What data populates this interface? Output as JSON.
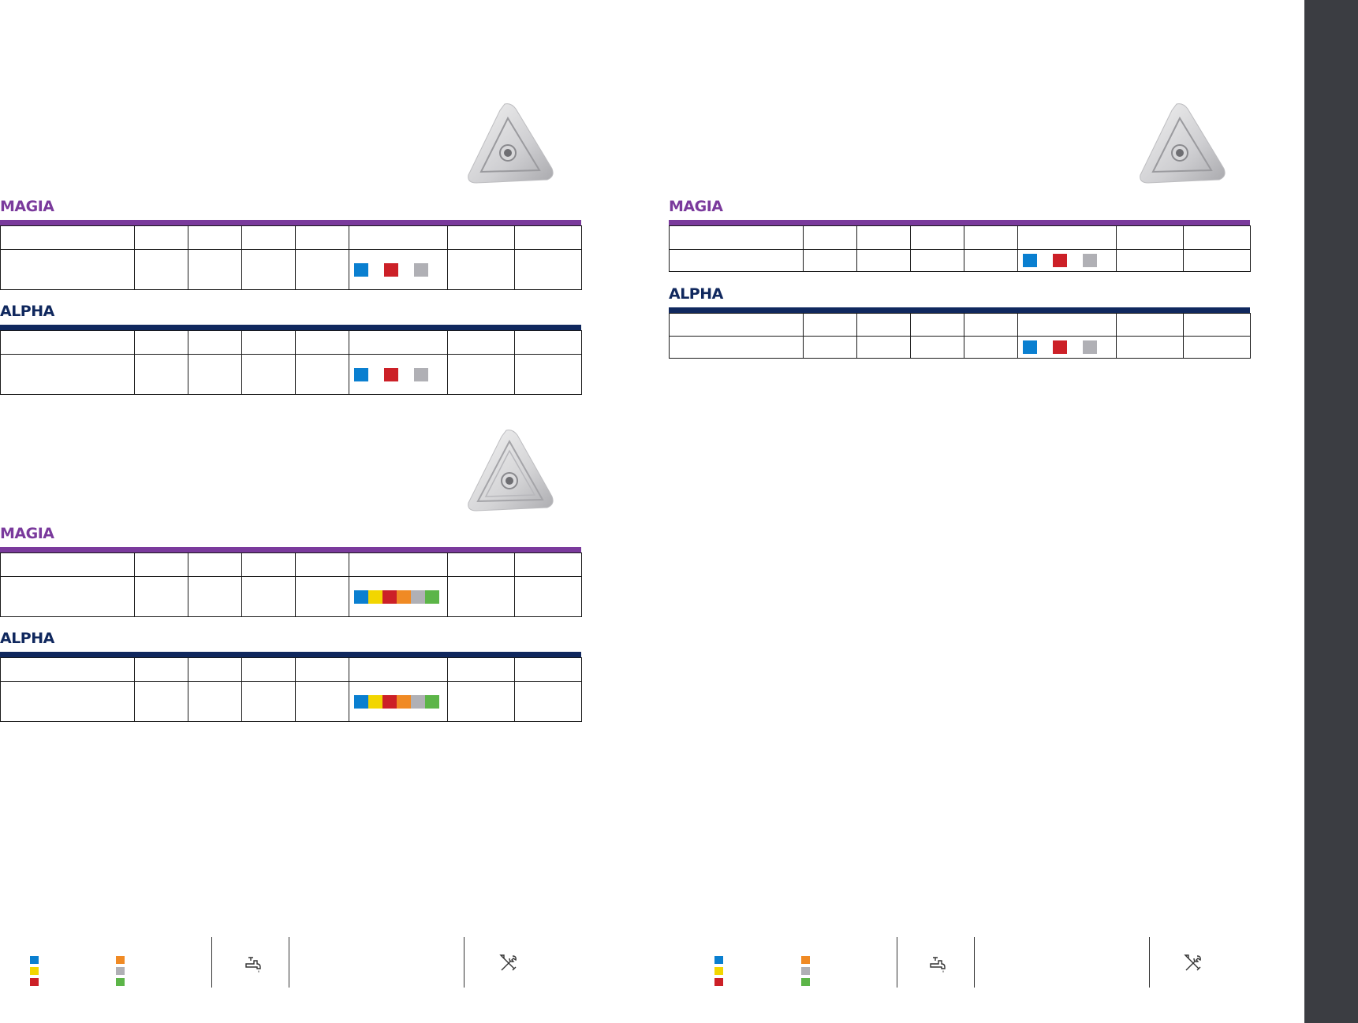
{
  "colors": {
    "magia_purple": "#7a3a9c",
    "alpha_navy": "#10285e",
    "chip_blue": "#0a7fd0",
    "chip_yellow": "#f2d600",
    "chip_red": "#cc2027",
    "chip_orange": "#f08a24",
    "chip_gray": "#b0b0b5",
    "chip_green": "#5cb548",
    "side_band": "#3b3d42"
  },
  "left_page": {
    "sections": [
      {
        "insert_icon": "triangular-insert-icon",
        "tables": [
          {
            "brand": "MAGIA",
            "chips": [
              "blue",
              "red",
              "gray"
            ],
            "chip_style": "spaced"
          },
          {
            "brand": "ALPHA",
            "chips": [
              "blue",
              "red",
              "gray"
            ],
            "chip_style": "spaced"
          }
        ]
      },
      {
        "insert_icon": "triangular-insert-icon",
        "tables": [
          {
            "brand": "MAGIA",
            "chips": [
              "blue",
              "yellow",
              "red",
              "orange",
              "gray",
              "green"
            ],
            "chip_style": "joined"
          },
          {
            "brand": "ALPHA",
            "chips": [
              "blue",
              "yellow",
              "red",
              "orange",
              "gray",
              "green"
            ],
            "chip_style": "joined"
          }
        ]
      }
    ]
  },
  "right_page": {
    "sections": [
      {
        "insert_icon": "triangular-insert-icon",
        "tables": [
          {
            "brand": "MAGIA",
            "chips": [
              "blue",
              "red",
              "gray"
            ],
            "chip_style": "spaced"
          },
          {
            "brand": "ALPHA",
            "chips": [
              "blue",
              "red",
              "gray"
            ],
            "chip_style": "spaced"
          }
        ]
      }
    ]
  },
  "footer": {
    "legend_colors": [
      "blue",
      "orange",
      "yellow",
      "gray",
      "red",
      "green"
    ],
    "icons": [
      "coolant-tap-icon",
      "tools-wrench-screwdriver-icon"
    ]
  }
}
